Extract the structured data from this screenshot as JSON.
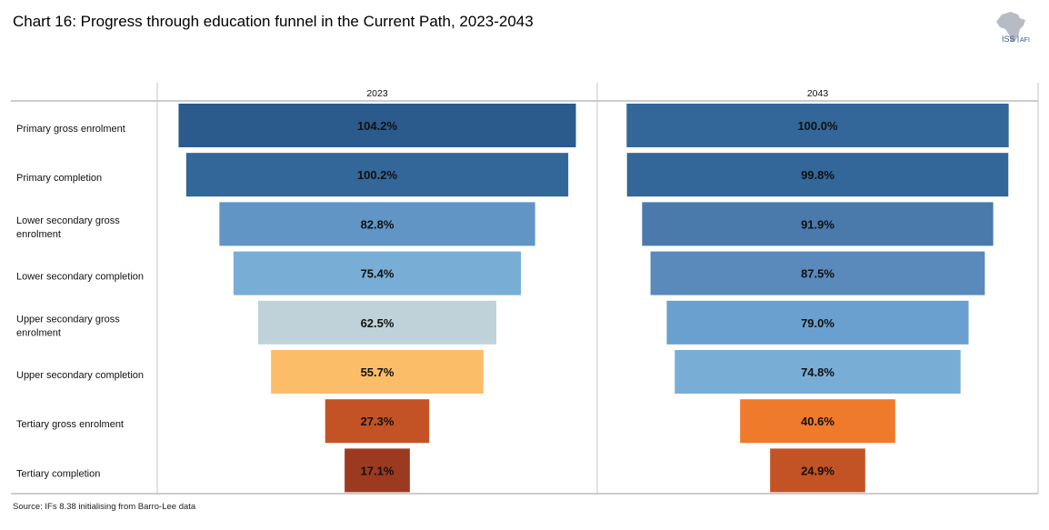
{
  "title": "Chart 16: Progress through education funnel in the Current Path, 2023-2043",
  "source": "Source: IFs 8.38 initialising from Barro-Lee data",
  "logo": {
    "text_main": "ISS",
    "text_sub": "AFI",
    "icon": "africa-map-icon"
  },
  "chart_data": {
    "type": "bar",
    "orientation": "horizontal-funnel",
    "categories": [
      [
        "Primary gross enrolment"
      ],
      [
        "Primary completion"
      ],
      [
        "Lower secondary gross",
        "enrolment"
      ],
      [
        "Lower secondary completion"
      ],
      [
        "Upper secondary gross",
        "enrolment"
      ],
      [
        "Upper secondary completion"
      ],
      [
        "Tertiary gross enrolment"
      ],
      [
        "Tertiary completion"
      ]
    ],
    "panels": [
      {
        "name": "2023",
        "values": [
          104.2,
          100.2,
          82.8,
          75.4,
          62.5,
          55.7,
          27.3,
          17.1
        ],
        "labels": [
          "104.2%",
          "100.2%",
          "82.8%",
          "75.4%",
          "62.5%",
          "55.7%",
          "27.3%",
          "17.1%"
        ],
        "colors": [
          "#2b5a8c",
          "#336699",
          "#6095c6",
          "#78aed6",
          "#bfd2da",
          "#fcbd69",
          "#c35325",
          "#9c3a20"
        ]
      },
      {
        "name": "2043",
        "values": [
          100.0,
          99.8,
          91.9,
          87.5,
          79.0,
          74.8,
          40.6,
          24.9
        ],
        "labels": [
          "100.0%",
          "99.8%",
          "91.9%",
          "87.5%",
          "79.0%",
          "74.8%",
          "40.6%",
          "24.9%"
        ],
        "colors": [
          "#336699",
          "#336699",
          "#4a7aab",
          "#5a89bc",
          "#6aa0cf",
          "#78aed6",
          "#ef7a2c",
          "#c35325"
        ]
      }
    ],
    "xlim": [
      0,
      105
    ]
  }
}
